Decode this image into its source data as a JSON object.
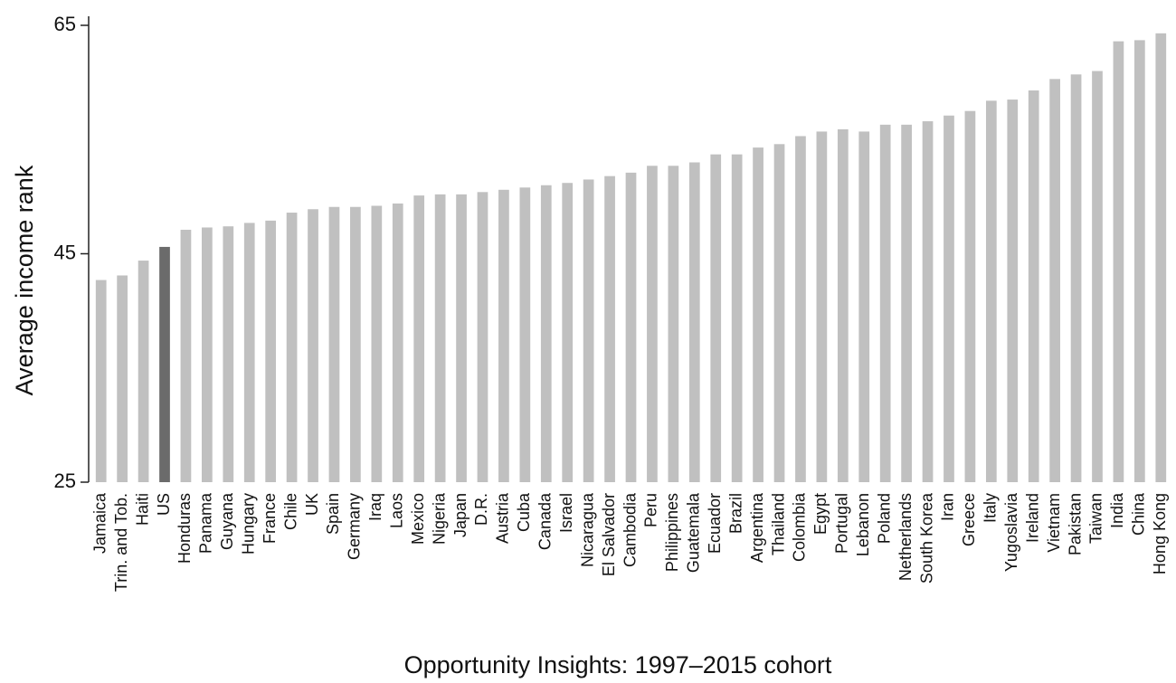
{
  "chart_data": {
    "type": "bar",
    "title": "",
    "xlabel": "Opportunity Insights: 1997–2015 cohort",
    "ylabel": "Average income rank",
    "ylim": [
      25,
      65
    ],
    "yticks": [
      25,
      45,
      65
    ],
    "grid": false,
    "highlight_category": "US",
    "colors": {
      "bar": "#c0c0c0",
      "highlight": "#6b6b6b",
      "axis": "#222222",
      "text": "#111111"
    },
    "categories": [
      "Jamaica",
      "Trin. and Tob.",
      "Haiti",
      "US",
      "Honduras",
      "Panama",
      "Guyana",
      "Hungary",
      "France",
      "Chile",
      "UK",
      "Spain",
      "Germany",
      "Iraq",
      "Laos",
      "Mexico",
      "Nigeria",
      "Japan",
      "D.R.",
      "Austria",
      "Cuba",
      "Canada",
      "Israel",
      "Nicaragua",
      "El Salvador",
      "Cambodia",
      "Peru",
      "Philippines",
      "Guatemala",
      "Ecuador",
      "Brazil",
      "Argentina",
      "Thailand",
      "Colombia",
      "Egypt",
      "Portugal",
      "Lebanon",
      "Poland",
      "Netherlands",
      "South Korea",
      "Iran",
      "Greece",
      "Italy",
      "Yugoslavia",
      "Ireland",
      "Vietnam",
      "Pakistan",
      "Taiwan",
      "India",
      "China",
      "Hong Kong"
    ],
    "values": [
      42.7,
      43.1,
      44.4,
      45.6,
      47.1,
      47.3,
      47.4,
      47.7,
      47.9,
      48.6,
      48.9,
      49.1,
      49.1,
      49.2,
      49.4,
      50.1,
      50.2,
      50.2,
      50.4,
      50.6,
      50.8,
      51.0,
      51.2,
      51.5,
      51.8,
      52.1,
      52.7,
      52.7,
      53.0,
      53.7,
      53.7,
      54.3,
      54.6,
      55.3,
      55.7,
      55.9,
      55.7,
      56.3,
      56.3,
      56.6,
      57.1,
      57.5,
      58.4,
      58.5,
      59.3,
      60.3,
      60.7,
      61.0,
      63.6,
      63.7,
      64.3
    ]
  }
}
